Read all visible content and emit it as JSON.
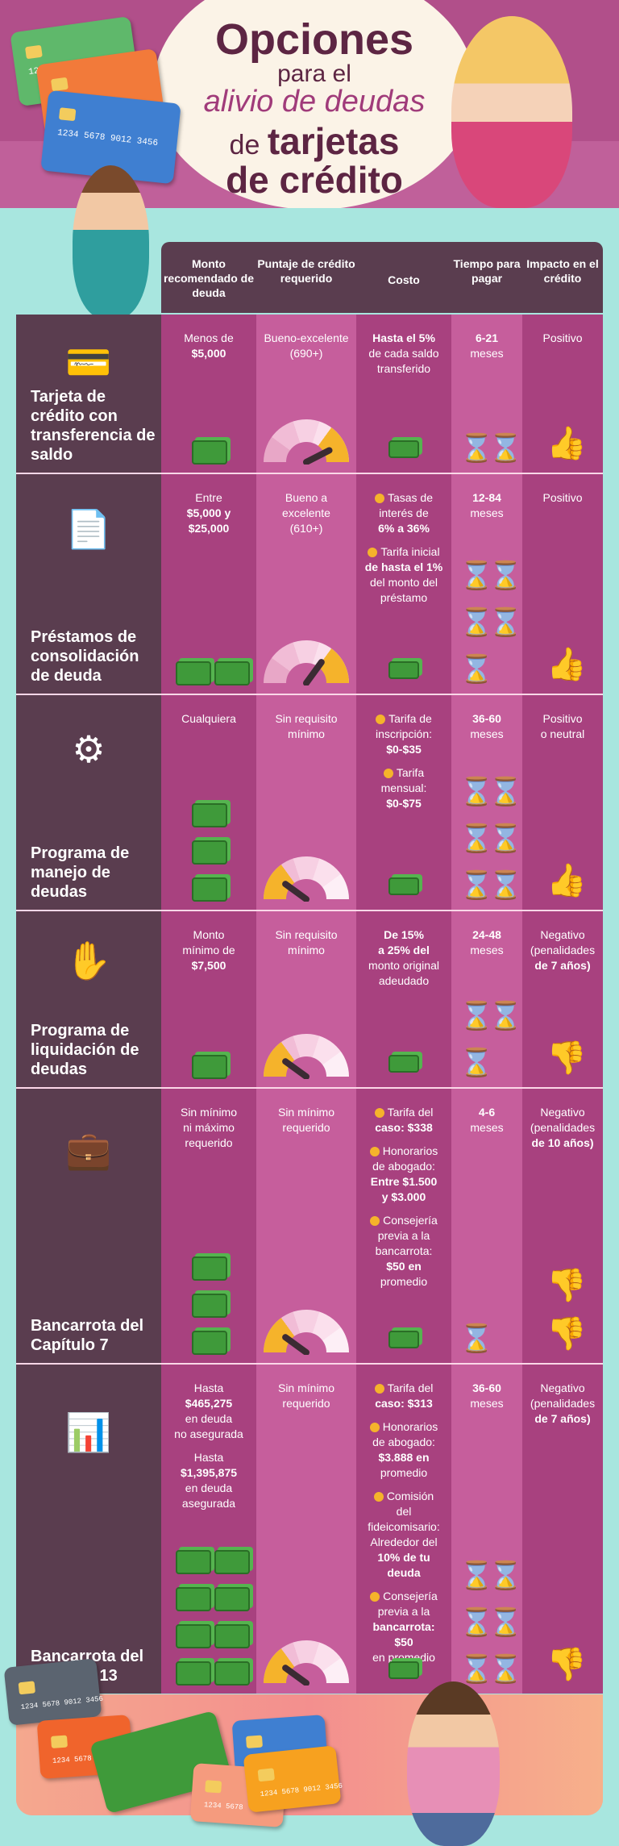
{
  "header": {
    "title_line1": "Opciones",
    "title_line2": "para el",
    "title_line3": "alivio de deudas",
    "title_line4_small": "de",
    "title_line4_big": "tarjetas",
    "title_line5": "de crédito"
  },
  "cards": {
    "number_a": "1234 5678 9012 3456",
    "number_b": "1234 5678",
    "number_c": "1234 5678 9012 3456"
  },
  "columns": [
    "Monto recomendado de deuda",
    "Puntaje de crédito requerido",
    "Costo",
    "Tiempo para pagar",
    "Impacto en el crédito"
  ],
  "rows": [
    {
      "name": "Tarjeta de crédito con transferencia de saldo",
      "icon": "credit-card-dollar-icon",
      "amount_lines": [
        "Menos de",
        "$5,000"
      ],
      "score": [
        "Bueno-excelente",
        "(690+)"
      ],
      "cost_notes": [
        [
          "Hasta el 5%",
          "de cada saldo",
          "transferido"
        ]
      ],
      "time": [
        "6-21",
        "meses"
      ],
      "impact": [
        "Positivo"
      ],
      "gauge_level": 0.85,
      "cash_stacks": 1,
      "hourglasses": 2,
      "thumb": "up"
    },
    {
      "name": "Préstamos de consolidación de deuda",
      "icon": "loan-document-icon",
      "amount_lines": [
        "Entre",
        "$5,000 y",
        "$25,000"
      ],
      "score": [
        "Bueno a",
        "excelente",
        "(610+)"
      ],
      "cost_notes": [
        [
          "Tasas de",
          "interés de",
          "6% a 36%"
        ],
        [
          "Tarifa inicial",
          "de hasta el 1%",
          "del monto del",
          "préstamo"
        ]
      ],
      "time": [
        "12-84",
        "meses"
      ],
      "impact": [
        "Positivo"
      ],
      "gauge_level": 0.7,
      "cash_stacks": 2,
      "hourglasses": 5,
      "thumb": "up"
    },
    {
      "name": "Programa de manejo de deudas",
      "icon": "gear-dollar-icon",
      "amount_lines": [
        "Cualquiera"
      ],
      "score": [
        "Sin requisito",
        "mínimo"
      ],
      "cost_notes": [
        [
          "Tarifa de",
          "inscripción:",
          "$0-$35"
        ],
        [
          "Tarifa",
          "mensual:",
          "$0-$75"
        ]
      ],
      "time": [
        "36-60",
        "meses"
      ],
      "impact": [
        "Positivo",
        "o neutral"
      ],
      "gauge_level": 0.2,
      "cash_stacks": 3,
      "hourglasses": 6,
      "thumb": "up"
    },
    {
      "name": "Programa de liquidación de deudas",
      "icon": "hand-cash-icon",
      "amount_lines": [
        "Monto",
        "mínimo de",
        "$7,500"
      ],
      "score": [
        "Sin requisito",
        "mínimo"
      ],
      "cost_notes": [
        [
          "De 15%",
          "a 25% del",
          "monto original",
          "adeudado"
        ]
      ],
      "time": [
        "24-48",
        "meses"
      ],
      "impact": [
        "Negativo",
        "(penalidades",
        "de 7 años)"
      ],
      "gauge_level": 0.2,
      "cash_stacks": 1,
      "hourglasses": 3,
      "thumb": "down"
    },
    {
      "name": "Bancarrota del Capítulo 7",
      "icon": "briefcase-dollar-icon",
      "amount_lines": [
        "Sin mínimo",
        "ni máximo",
        "requerido"
      ],
      "score": [
        "Sin mínimo",
        "requerido"
      ],
      "cost_notes": [
        [
          "Tarifa del",
          "caso: $338"
        ],
        [
          "Honorarios",
          "de abogado:",
          "Entre $1.500",
          "y $3.000"
        ],
        [
          "Consejería",
          "previa a la",
          "bancarrota:",
          "$50 en",
          "promedio"
        ]
      ],
      "time": [
        "4-6",
        "meses"
      ],
      "impact": [
        "Negativo",
        "(penalidades",
        "de 10 años)"
      ],
      "gauge_level": 0.2,
      "cash_stacks": 3,
      "hourglasses": 1,
      "thumb": "down"
    },
    {
      "name": "Bancarrota del Capítulo 13",
      "icon": "chart-document-dollar-icon",
      "amount_lines": [
        "Hasta",
        "$465,275",
        "en deuda",
        "no asegurada",
        "",
        "Hasta",
        "$1,395,875",
        "en deuda",
        "asegurada"
      ],
      "score": [
        "Sin mínimo",
        "requerido"
      ],
      "cost_notes": [
        [
          "Tarifa del",
          "caso: $313"
        ],
        [
          "Honorarios",
          "de abogado:",
          "$3.888 en",
          "promedio"
        ],
        [
          "Comisión",
          "del fideicomisario:",
          "Alrededor del",
          "10% de tu deuda"
        ],
        [
          "Consejería",
          "previa a la",
          "bancarrota: $50",
          "en promedio"
        ]
      ],
      "time": [
        "36-60",
        "meses"
      ],
      "impact": [
        "Negativo",
        "(penalidades",
        "de 7 años)"
      ],
      "gauge_level": 0.2,
      "cash_stacks": 8,
      "hourglasses": 6,
      "thumb": "down"
    }
  ],
  "colors": {
    "header_bg": "#b14f8a",
    "label_bg": "#5a3d4f",
    "col_dark": "#a8417f",
    "col_light": "#c65e9c",
    "teal_bg": "#a8e6df",
    "accent_yellow": "#f5b32b"
  }
}
